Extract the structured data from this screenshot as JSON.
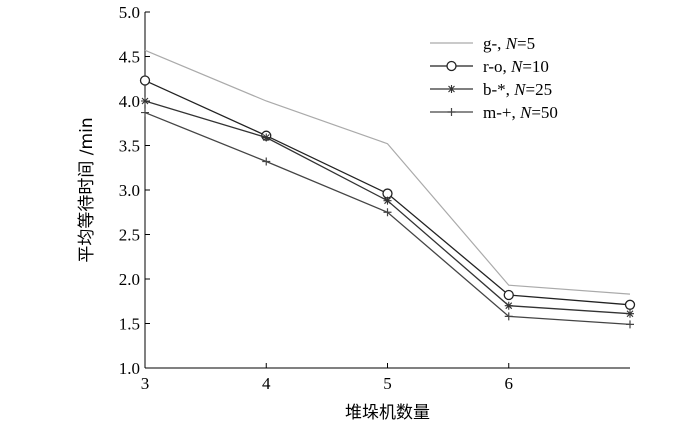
{
  "chart_data": {
    "type": "line",
    "title": "",
    "xlabel": "堆垛机数量",
    "ylabel": "平均等待时间 /min",
    "xlim": [
      3,
      7
    ],
    "ylim": [
      1.0,
      5.0
    ],
    "x_ticks": [
      "3",
      "4",
      "5",
      "6"
    ],
    "y_ticks": [
      "1.0",
      "1.5",
      "2.0",
      "2.5",
      "3.0",
      "3.5",
      "4.0",
      "4.5",
      "5.0"
    ],
    "x": [
      3,
      4,
      5,
      6,
      7
    ],
    "grid": false,
    "legend_position": "top-right",
    "series": [
      {
        "legend_prefix": "g-, ",
        "legend_N": "N",
        "legend_suffix": "=5",
        "color": "#aaaaaa",
        "marker": "none",
        "values": [
          4.57,
          4.0,
          3.52,
          1.93,
          1.83
        ]
      },
      {
        "legend_prefix": "r-o, ",
        "legend_N": "N",
        "legend_suffix": "=10",
        "color": "#222222",
        "marker": "circle",
        "values": [
          4.23,
          3.61,
          2.96,
          1.82,
          1.71
        ]
      },
      {
        "legend_prefix": "b-*, ",
        "legend_N": "N",
        "legend_suffix": "=25",
        "color": "#333333",
        "marker": "star",
        "values": [
          4.0,
          3.59,
          2.88,
          1.7,
          1.61
        ]
      },
      {
        "legend_prefix": "m-+, ",
        "legend_N": "N",
        "legend_suffix": "=50",
        "color": "#444444",
        "marker": "plus",
        "values": [
          3.87,
          3.32,
          2.75,
          1.58,
          1.49
        ]
      }
    ]
  }
}
